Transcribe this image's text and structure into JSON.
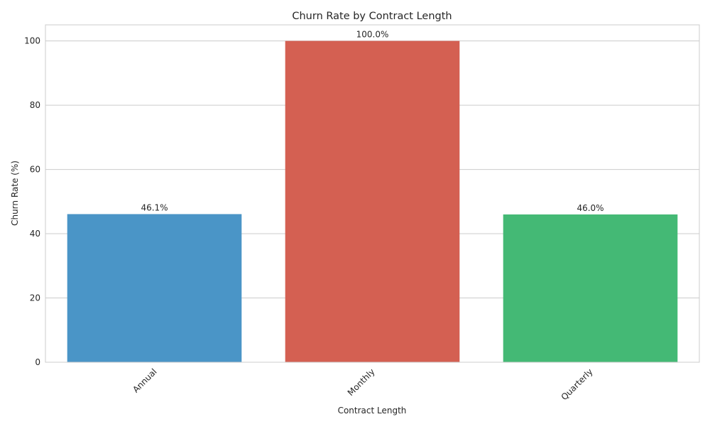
{
  "chart_data": {
    "type": "bar",
    "title": "Churn Rate by Contract Length",
    "xlabel": "Contract Length",
    "ylabel": "Churn Rate (%)",
    "categories": [
      "Annual",
      "Monthly",
      "Quarterly"
    ],
    "values": [
      46.1,
      100.0,
      46.0
    ],
    "value_labels": [
      "46.1%",
      "100.0%",
      "46.0%"
    ],
    "colors": [
      "#4a95c7",
      "#d46052",
      "#44b975"
    ],
    "ylim": [
      0,
      105
    ],
    "yticks": [
      0,
      20,
      40,
      60,
      80,
      100
    ],
    "ytick_labels": [
      "0",
      "20",
      "40",
      "60",
      "80",
      "100"
    ],
    "grid": "y",
    "legend": "none"
  }
}
